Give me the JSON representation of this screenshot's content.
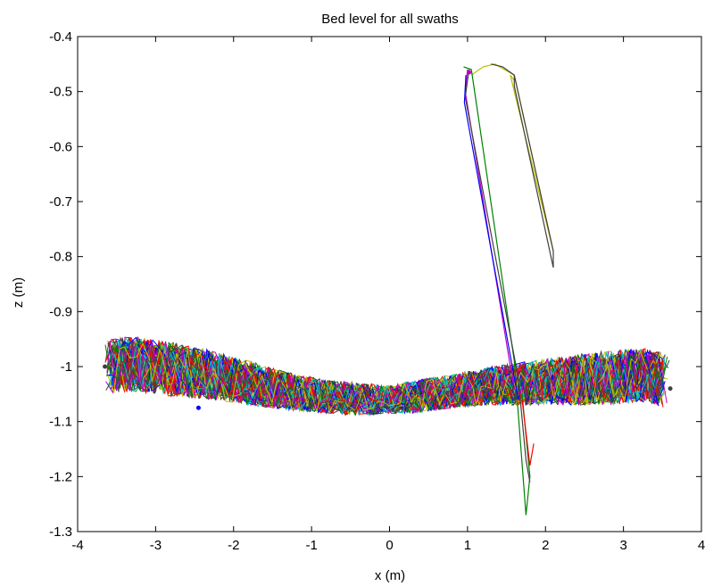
{
  "chart_data": {
    "type": "line",
    "title": "Bed level for all swaths",
    "xlabel": "x (m)",
    "ylabel": "z (m)",
    "xlim": [
      -4,
      4
    ],
    "ylim": [
      -1.3,
      -0.4
    ],
    "xticks": [
      -4,
      -3,
      -2,
      -1,
      0,
      1,
      2,
      3,
      4
    ],
    "yticks": [
      -0.4,
      -0.5,
      -0.6,
      -0.7,
      -0.8,
      -0.9,
      -1,
      -1.1,
      -1.2,
      -1.3
    ],
    "xtick_labels": [
      "-4",
      "-3",
      "-2",
      "-1",
      "0",
      "1",
      "2",
      "3",
      "4"
    ],
    "ytick_labels": [
      "-0.4",
      "-0.5",
      "-0.6",
      "-0.7",
      "-0.8",
      "-0.9",
      "-1",
      "-1.1",
      "-1.2",
      "-1.3"
    ],
    "grid": false,
    "legend": false,
    "series_colors": [
      "#0000ff",
      "#008000",
      "#ff0000",
      "#00bfbf",
      "#bf00bf",
      "#bfbf00",
      "#404040"
    ],
    "bed_profile": {
      "description_points_x": [
        -3.65,
        -3.3,
        -2.8,
        -2.3,
        -1.8,
        -1.3,
        -0.8,
        -0.3,
        0.0,
        0.3,
        0.8,
        1.3,
        1.8,
        2.3,
        2.8,
        3.3,
        3.6
      ],
      "mean_z": [
        -1.0,
        -0.995,
        -1.005,
        -1.015,
        -1.03,
        -1.045,
        -1.055,
        -1.06,
        -1.06,
        -1.055,
        -1.045,
        -1.035,
        -1.03,
        -1.025,
        -1.02,
        -1.015,
        -1.03
      ],
      "spread_z": [
        0.05,
        0.05,
        0.05,
        0.045,
        0.04,
        0.035,
        0.03,
        0.03,
        0.025,
        0.03,
        0.03,
        0.035,
        0.04,
        0.045,
        0.05,
        0.05,
        0.05
      ]
    },
    "outlier_traces": [
      {
        "color": "#bfbf00",
        "x": [
          1.05,
          1.2,
          1.35,
          1.6,
          2.1,
          1.6,
          1.55,
          1.6
        ],
        "z": [
          -0.47,
          -0.455,
          -0.45,
          -0.47,
          -0.79,
          -0.5,
          -0.47,
          -0.48
        ]
      },
      {
        "color": "#404040",
        "x": [
          1.3,
          1.45,
          1.6,
          2.1,
          2.1,
          1.6,
          1.6
        ],
        "z": [
          -0.45,
          -0.455,
          -0.47,
          -0.79,
          -0.82,
          -0.49,
          -0.47
        ]
      },
      {
        "color": "#008000",
        "x": [
          0.95,
          1.05,
          1.6,
          1.75,
          1.8,
          1.7
        ],
        "z": [
          -0.455,
          -0.46,
          -0.99,
          -1.27,
          -1.2,
          -1.05
        ]
      },
      {
        "color": "#bf00bf",
        "x": [
          1.0,
          0.97,
          1.55,
          1.6
        ],
        "z": [
          -0.46,
          -0.5,
          -1.0,
          -1.03
        ]
      },
      {
        "color": "#0000ff",
        "x": [
          0.98,
          0.96,
          1.6,
          1.65
        ],
        "z": [
          -0.47,
          -0.52,
          -1.02,
          -1.06
        ]
      },
      {
        "color": "#404040",
        "x": [
          1.02,
          0.97,
          1.65,
          1.75,
          1.8
        ],
        "z": [
          -0.46,
          -0.51,
          -1.02,
          -1.17,
          -1.21
        ]
      },
      {
        "color": "#ff0000",
        "x": [
          1.7,
          1.75,
          1.8,
          1.85
        ],
        "z": [
          -1.06,
          -1.12,
          -1.18,
          -1.14
        ]
      }
    ]
  }
}
